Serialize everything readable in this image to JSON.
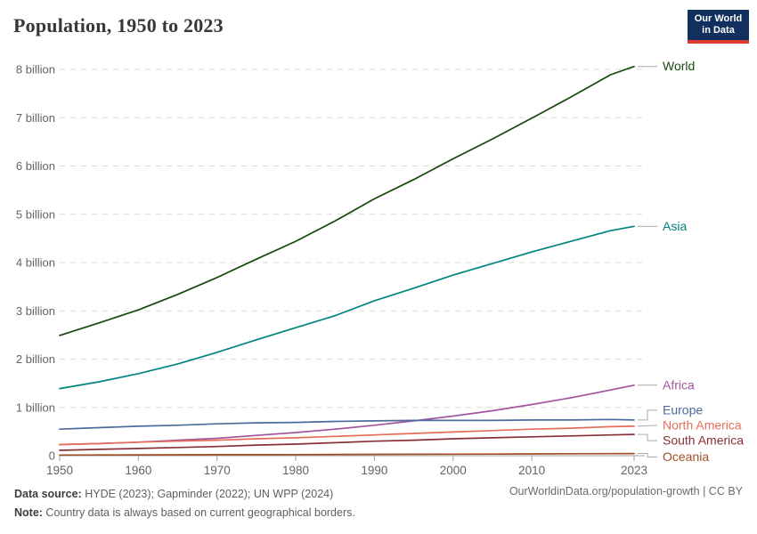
{
  "header": {
    "title": "Population, 1950 to 2023"
  },
  "logo": {
    "line1": "Our World",
    "line2": "in Data",
    "bg_color": "#12305e",
    "accent_color": "#dc3a2f"
  },
  "chart_data": {
    "type": "line",
    "title": "Population, 1950 to 2023",
    "xlabel": "",
    "ylabel": "",
    "xlim": [
      1950,
      2023
    ],
    "ylim": [
      0,
      8.3
    ],
    "grid": "dashed-horizontal",
    "legend": "end-of-line-labels",
    "x": [
      1950,
      1955,
      1960,
      1965,
      1970,
      1975,
      1980,
      1985,
      1990,
      1995,
      2000,
      2005,
      2010,
      2015,
      2020,
      2023
    ],
    "x_ticks": [
      1950,
      1960,
      1970,
      1980,
      1990,
      2000,
      2010,
      2023
    ],
    "y_ticks": [
      {
        "value": 0,
        "label": "0"
      },
      {
        "value": 1,
        "label": "1 billion"
      },
      {
        "value": 2,
        "label": "2 billion"
      },
      {
        "value": 3,
        "label": "3 billion"
      },
      {
        "value": 4,
        "label": "4 billion"
      },
      {
        "value": 5,
        "label": "5 billion"
      },
      {
        "value": 6,
        "label": "6 billion"
      },
      {
        "value": 7,
        "label": "7 billion"
      },
      {
        "value": 8,
        "label": "8 billion"
      }
    ],
    "unit": "billion",
    "series": [
      {
        "name": "World",
        "color": "#18470f",
        "label_dy": 0,
        "values": [
          2.49,
          2.75,
          3.02,
          3.34,
          3.69,
          4.07,
          4.44,
          4.86,
          5.32,
          5.72,
          6.15,
          6.56,
          6.99,
          7.43,
          7.89,
          8.06
        ]
      },
      {
        "name": "Asia",
        "color": "#00847e",
        "label_dy": 0,
        "values": [
          1.39,
          1.53,
          1.7,
          1.9,
          2.14,
          2.4,
          2.65,
          2.9,
          3.21,
          3.47,
          3.74,
          3.98,
          4.22,
          4.44,
          4.66,
          4.75
        ]
      },
      {
        "name": "Africa",
        "color": "#a2559c",
        "label_dy": 0,
        "values": [
          0.23,
          0.25,
          0.28,
          0.32,
          0.36,
          0.42,
          0.48,
          0.55,
          0.63,
          0.72,
          0.82,
          0.93,
          1.06,
          1.2,
          1.36,
          1.46
        ]
      },
      {
        "name": "Europe",
        "color": "#4c6a9c",
        "label_dy": -11,
        "values": [
          0.55,
          0.58,
          0.61,
          0.63,
          0.66,
          0.68,
          0.69,
          0.71,
          0.72,
          0.73,
          0.73,
          0.73,
          0.74,
          0.74,
          0.75,
          0.74
        ]
      },
      {
        "name": "North America",
        "color": "#e56e5a",
        "label_dy": -1,
        "values": [
          0.23,
          0.25,
          0.28,
          0.3,
          0.32,
          0.35,
          0.37,
          0.4,
          0.43,
          0.46,
          0.49,
          0.52,
          0.55,
          0.57,
          0.6,
          0.61
        ]
      },
      {
        "name": "South America",
        "color": "#883039",
        "label_dy": 7,
        "values": [
          0.11,
          0.13,
          0.15,
          0.17,
          0.19,
          0.22,
          0.24,
          0.27,
          0.3,
          0.32,
          0.35,
          0.37,
          0.39,
          0.41,
          0.43,
          0.44
        ]
      },
      {
        "name": "Oceania",
        "color": "#a04f27",
        "label_dy": 4,
        "values": [
          0.013,
          0.014,
          0.016,
          0.018,
          0.02,
          0.021,
          0.023,
          0.025,
          0.027,
          0.029,
          0.031,
          0.034,
          0.037,
          0.04,
          0.043,
          0.045
        ]
      }
    ]
  },
  "footer": {
    "source_label": "Data source:",
    "source_text": " HYDE (2023); Gapminder (2022); UN WPP (2024)",
    "note_label": "Note:",
    "note_text": " Country data is always based on current geographical borders.",
    "right_text": "OurWorldinData.org/population-growth | CC BY"
  }
}
